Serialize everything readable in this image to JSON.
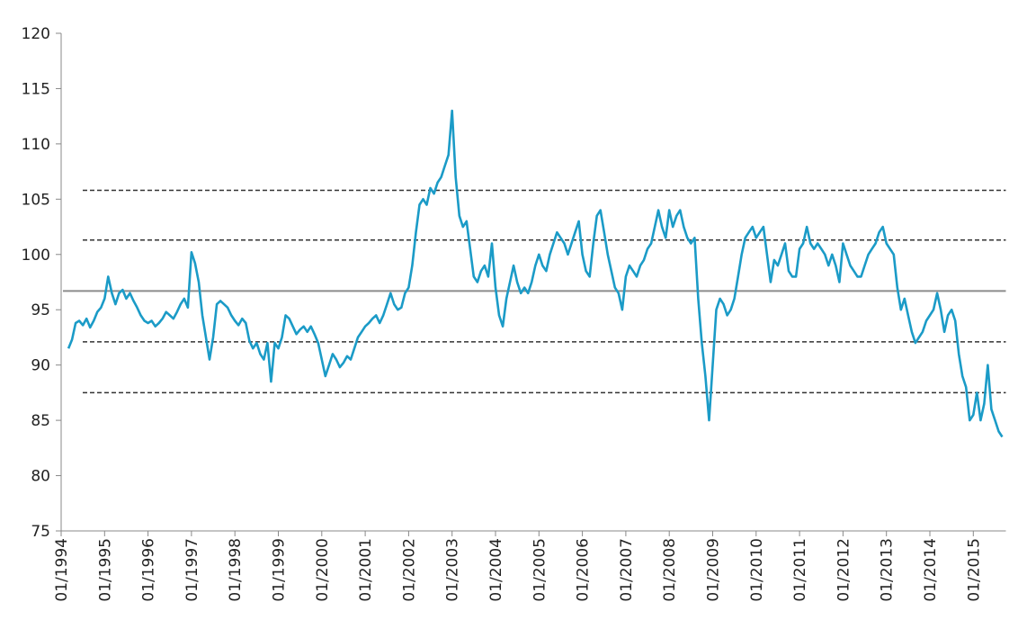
{
  "chart_data": {
    "type": "line",
    "x": [
      "03/1994",
      "04/1994",
      "05/1994",
      "06/1994",
      "07/1994",
      "08/1994",
      "09/1994",
      "10/1994",
      "11/1994",
      "12/1994",
      "01/1995",
      "02/1995",
      "03/1995",
      "04/1995",
      "05/1995",
      "06/1995",
      "07/1995",
      "08/1995",
      "09/1995",
      "10/1995",
      "11/1995",
      "12/1995",
      "01/1996",
      "02/1996",
      "03/1996",
      "04/1996",
      "05/1996",
      "06/1996",
      "07/1996",
      "08/1996",
      "09/1996",
      "10/1996",
      "11/1996",
      "12/1996",
      "01/1997",
      "02/1997",
      "03/1997",
      "04/1997",
      "05/1997",
      "06/1997",
      "07/1997",
      "08/1997",
      "09/1997",
      "10/1997",
      "11/1997",
      "12/1997",
      "01/1998",
      "02/1998",
      "03/1998",
      "04/1998",
      "05/1998",
      "06/1998",
      "07/1998",
      "08/1998",
      "09/1998",
      "10/1998",
      "11/1998",
      "12/1998",
      "01/1999",
      "02/1999",
      "03/1999",
      "04/1999",
      "05/1999",
      "06/1999",
      "07/1999",
      "08/1999",
      "09/1999",
      "10/1999",
      "11/1999",
      "12/1999",
      "01/2000",
      "02/2000",
      "03/2000",
      "04/2000",
      "05/2000",
      "06/2000",
      "07/2000",
      "08/2000",
      "09/2000",
      "10/2000",
      "11/2000",
      "12/2000",
      "01/2001",
      "02/2001",
      "03/2001",
      "04/2001",
      "05/2001",
      "06/2001",
      "07/2001",
      "08/2001",
      "09/2001",
      "10/2001",
      "11/2001",
      "12/2001",
      "01/2002",
      "02/2002",
      "03/2002",
      "04/2002",
      "05/2002",
      "06/2002",
      "07/2002",
      "08/2002",
      "09/2002",
      "10/2002",
      "11/2002",
      "12/2002",
      "01/2003",
      "02/2003",
      "03/2003",
      "04/2003",
      "05/2003",
      "06/2003",
      "07/2003",
      "08/2003",
      "09/2003",
      "10/2003",
      "11/2003",
      "12/2003",
      "01/2004",
      "02/2004",
      "03/2004",
      "04/2004",
      "05/2004",
      "06/2004",
      "07/2004",
      "08/2004",
      "09/2004",
      "10/2004",
      "11/2004",
      "12/2004",
      "01/2005",
      "02/2005",
      "03/2005",
      "04/2005",
      "05/2005",
      "06/2005",
      "07/2005",
      "08/2005",
      "09/2005",
      "10/2005",
      "11/2005",
      "12/2005",
      "01/2006",
      "02/2006",
      "03/2006",
      "04/2006",
      "05/2006",
      "06/2006",
      "07/2006",
      "08/2006",
      "09/2006",
      "10/2006",
      "11/2006",
      "12/2006",
      "01/2007",
      "02/2007",
      "03/2007",
      "04/2007",
      "05/2007",
      "06/2007",
      "07/2007",
      "08/2007",
      "09/2007",
      "10/2007",
      "11/2007",
      "12/2007",
      "01/2008",
      "02/2008",
      "03/2008",
      "04/2008",
      "05/2008",
      "06/2008",
      "07/2008",
      "08/2008",
      "09/2008",
      "10/2008",
      "11/2008",
      "12/2008",
      "01/2009",
      "02/2009",
      "03/2009",
      "04/2009",
      "05/2009",
      "06/2009",
      "07/2009",
      "08/2009",
      "09/2009",
      "10/2009",
      "11/2009",
      "12/2009",
      "01/2010",
      "02/2010",
      "03/2010",
      "04/2010",
      "05/2010",
      "06/2010",
      "07/2010",
      "08/2010",
      "09/2010",
      "10/2010",
      "11/2010",
      "12/2010",
      "01/2011",
      "02/2011",
      "03/2011",
      "04/2011",
      "05/2011",
      "06/2011",
      "07/2011",
      "08/2011",
      "09/2011",
      "10/2011",
      "11/2011",
      "12/2011",
      "01/2012",
      "02/2012",
      "03/2012",
      "04/2012",
      "05/2012",
      "06/2012",
      "07/2012",
      "08/2012",
      "09/2012",
      "10/2012",
      "11/2012",
      "12/2012",
      "01/2013",
      "02/2013",
      "03/2013",
      "04/2013",
      "05/2013",
      "06/2013",
      "07/2013",
      "08/2013",
      "09/2013",
      "10/2013",
      "11/2013",
      "12/2013",
      "01/2014",
      "02/2014",
      "03/2014",
      "04/2014",
      "05/2014",
      "06/2014",
      "07/2014",
      "08/2014",
      "09/2014",
      "10/2014",
      "11/2014",
      "12/2014",
      "01/2015",
      "02/2015",
      "03/2015",
      "04/2015",
      "05/2015",
      "06/2015",
      "07/2015",
      "08/2015",
      "09/2015"
    ],
    "series": [
      {
        "color": "#1b9bc7",
        "values": [
          91.5,
          92.3,
          93.8,
          94,
          93.6,
          94.2,
          93.4,
          94,
          94.8,
          95.2,
          96,
          98,
          96.5,
          95.5,
          96.5,
          96.8,
          96,
          96.5,
          95.8,
          95.2,
          94.5,
          94,
          93.8,
          94,
          93.5,
          93.8,
          94.2,
          94.8,
          94.5,
          94.2,
          94.8,
          95.5,
          96,
          95.2,
          100.2,
          99.2,
          97.5,
          94.5,
          92.5,
          90.5,
          92.5,
          95.5,
          95.8,
          95.5,
          95.2,
          94.5,
          94,
          93.6,
          94.2,
          93.8,
          92.2,
          91.5,
          92,
          91,
          90.5,
          92,
          88.5,
          92,
          91.5,
          92.5,
          94.5,
          94.2,
          93.5,
          92.8,
          93.2,
          93.5,
          93,
          93.5,
          92.8,
          92,
          90.5,
          89,
          90,
          91,
          90.5,
          89.8,
          90.2,
          90.8,
          90.5,
          91.5,
          92.5,
          93,
          93.5,
          93.8,
          94.2,
          94.5,
          93.8,
          94.5,
          95.5,
          96.5,
          95.5,
          95,
          95.2,
          96.5,
          97,
          99,
          102,
          104.5,
          105,
          104.5,
          106,
          105.5,
          106.5,
          107,
          108,
          109,
          113,
          107,
          103.5,
          102.5,
          103,
          100.5,
          98,
          97.5,
          98.5,
          99,
          98,
          101,
          97,
          94.5,
          93.5,
          96,
          97.5,
          99,
          97.5,
          96.5,
          97,
          96.5,
          97.5,
          99,
          100,
          99,
          98.5,
          100,
          101,
          102,
          101.5,
          101,
          100,
          101,
          102,
          103,
          100,
          98.5,
          98,
          101,
          103.5,
          104,
          102,
          100,
          98.5,
          97,
          96.5,
          95,
          98,
          99,
          98.5,
          98,
          99,
          99.5,
          100.5,
          101,
          102.5,
          104,
          102.5,
          101.5,
          104,
          102.5,
          103.5,
          104,
          102.5,
          101.5,
          101,
          101.5,
          96,
          92,
          89,
          85,
          90,
          95,
          96,
          95.5,
          94.5,
          95,
          96,
          98,
          100,
          101.5,
          102,
          102.5,
          101.5,
          102,
          102.5,
          100,
          97.5,
          99.5,
          99,
          100,
          101,
          98.5,
          98,
          98,
          100.5,
          101,
          102.5,
          101,
          100.5,
          101,
          100.5,
          100,
          99,
          100,
          99,
          97.5,
          101,
          100,
          99,
          98.5,
          98,
          98,
          99,
          100,
          100.5,
          101,
          102,
          102.5,
          101,
          100.5,
          100,
          97,
          95,
          96,
          94.5,
          93,
          92,
          92.5,
          93,
          94,
          94.5,
          95,
          96.5,
          95,
          93,
          94.5,
          95,
          94,
          91,
          89,
          88,
          85,
          85.5,
          87.5,
          85,
          86.5,
          90,
          86,
          85,
          84,
          83.5
        ]
      }
    ],
    "reference_lines": [
      {
        "value": 96.7,
        "style": "solid",
        "color": "#8c8c8c"
      },
      {
        "value": 101.3,
        "style": "dashed",
        "color": "#333333"
      },
      {
        "value": 92.1,
        "style": "dashed",
        "color": "#333333"
      },
      {
        "value": 105.8,
        "style": "dashed",
        "color": "#333333"
      },
      {
        "value": 87.5,
        "style": "dashed",
        "color": "#333333"
      }
    ],
    "ylim": [
      75,
      120
    ],
    "yticks": [
      75,
      80,
      85,
      90,
      95,
      100,
      105,
      110,
      115,
      120
    ],
    "xlim": [
      "01/1994",
      "09/2015"
    ],
    "xticks": [
      "01/1994",
      "01/1995",
      "01/1996",
      "01/1997",
      "01/1998",
      "01/1999",
      "01/2000",
      "01/2001",
      "01/2002",
      "01/2003",
      "01/2004",
      "01/2005",
      "01/2006",
      "01/2007",
      "01/2008",
      "01/2009",
      "01/2010",
      "01/2011",
      "01/2012",
      "01/2013",
      "01/2014",
      "01/2015"
    ],
    "grid": false
  }
}
